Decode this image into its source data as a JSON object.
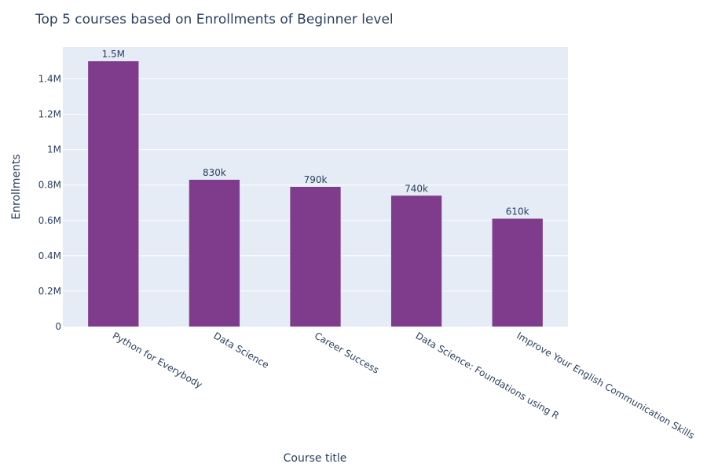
{
  "chart_data": {
    "type": "bar",
    "title": "Top 5 courses based on Enrollments of Beginner level",
    "xlabel": "Course title",
    "ylabel": "Enrollments",
    "categories": [
      "Python for Everybody",
      "Data Science",
      "Career Success",
      "Data Science: Foundations using R",
      "Improve Your English Communication Skills"
    ],
    "values": [
      1500000,
      830000,
      790000,
      740000,
      610000
    ],
    "value_labels": [
      "1.5M",
      "830k",
      "790k",
      "740k",
      "610k"
    ],
    "ylim": [
      0,
      1580000
    ],
    "yticks": [
      0,
      200000,
      400000,
      600000,
      800000,
      1000000,
      1200000,
      1400000
    ],
    "ytick_labels": [
      "0",
      "0.2M",
      "0.4M",
      "0.6M",
      "0.8M",
      "1M",
      "1.2M",
      "1.4M"
    ],
    "grid": true,
    "colors": {
      "bar": "#7f3c8d",
      "plot_bg": "#e5ecf6",
      "grid": "#ffffff",
      "text": "#2a3f5f"
    }
  }
}
